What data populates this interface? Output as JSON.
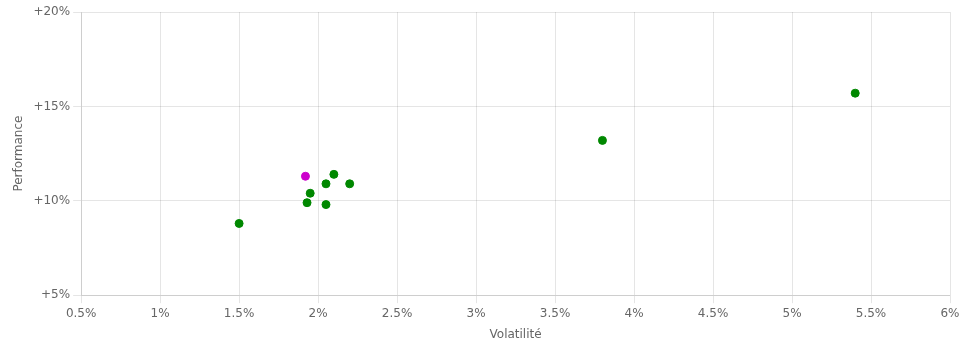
{
  "chart_data": {
    "type": "scatter",
    "xlabel": "Volatilité",
    "ylabel": "Performance",
    "series": [
      {
        "color": "#008800",
        "x": [
          0.021,
          0.0205,
          0.022,
          0.0195,
          0.0193,
          0.0205,
          0.015,
          0.038,
          0.054
        ],
        "values": [
          0.114,
          0.109,
          0.109,
          0.104,
          0.099,
          0.098,
          0.088,
          0.132,
          0.157
        ]
      },
      {
        "color": "#cc00cc",
        "x": [
          0.0192
        ],
        "values": [
          0.113
        ]
      }
    ],
    "xlim": [
      0.005,
      0.06
    ],
    "ylim": [
      0.05,
      0.2
    ],
    "xticks": [
      {
        "value": 0.005,
        "label": "0.5%"
      },
      {
        "value": 0.01,
        "label": "1%"
      },
      {
        "value": 0.015,
        "label": "1.5%"
      },
      {
        "value": 0.02,
        "label": "2%"
      },
      {
        "value": 0.025,
        "label": "2.5%"
      },
      {
        "value": 0.03,
        "label": "3%"
      },
      {
        "value": 0.035,
        "label": "3.5%"
      },
      {
        "value": 0.04,
        "label": "4%"
      },
      {
        "value": 0.045,
        "label": "4.5%"
      },
      {
        "value": 0.05,
        "label": "5%"
      },
      {
        "value": 0.055,
        "label": "5.5%"
      },
      {
        "value": 0.06,
        "label": "6%"
      }
    ],
    "yticks": [
      {
        "value": 0.05,
        "label": "+5%"
      },
      {
        "value": 0.1,
        "label": "+10%"
      },
      {
        "value": 0.15,
        "label": "+15%"
      },
      {
        "value": 0.2,
        "label": "+20%"
      }
    ],
    "grid": true
  }
}
